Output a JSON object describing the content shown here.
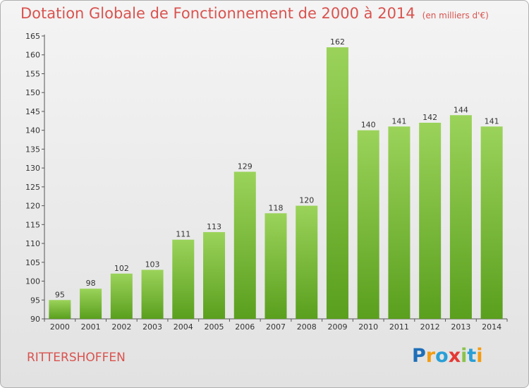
{
  "header": {
    "title": "Dotation Globale de Fonctionnement de 2000 à 2014",
    "subtitle": "(en milliers d'€)"
  },
  "commune": "RITTERSHOFFEN",
  "logo": {
    "text": "Proxiti",
    "letters": [
      "P",
      "r",
      "o",
      "x",
      "i",
      "t",
      "i"
    ],
    "colors": [
      "#1e6fb8",
      "#f39c12",
      "#2a9fd6",
      "#e53935",
      "#8bc34a",
      "#2a9fd6",
      "#f39c12"
    ]
  },
  "chart_data": {
    "type": "bar",
    "categories": [
      "2000",
      "2001",
      "2002",
      "2003",
      "2004",
      "2005",
      "2006",
      "2007",
      "2008",
      "2009",
      "2010",
      "2011",
      "2012",
      "2013",
      "2014"
    ],
    "values": [
      95,
      98,
      102,
      103,
      111,
      113,
      129,
      118,
      120,
      162,
      140,
      141,
      142,
      144,
      141
    ],
    "data_labels": [
      "95",
      "98",
      "102",
      "103",
      "111",
      "113",
      "129",
      "118",
      "120",
      "162",
      "140",
      "141",
      "142",
      "144",
      "141"
    ],
    "title": "Dotation Globale de Fonctionnement de 2000 à 2014",
    "subtitle": "(en milliers d'€)",
    "ylim": [
      90,
      165
    ],
    "yticks": [
      90,
      95,
      100,
      105,
      110,
      115,
      120,
      125,
      130,
      135,
      140,
      145,
      150,
      155,
      160,
      165
    ],
    "grid": false,
    "bar_color": "#7cc242"
  }
}
